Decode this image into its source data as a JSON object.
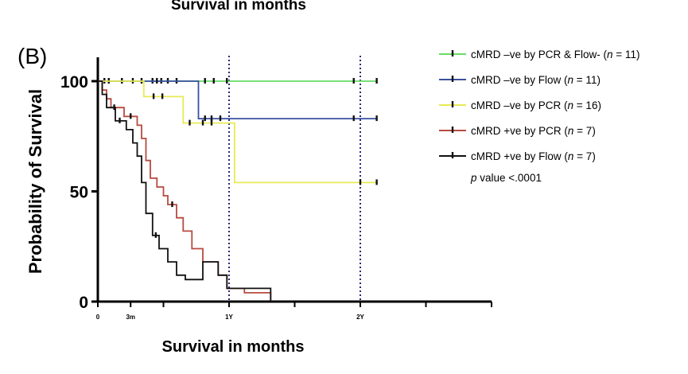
{
  "top_caption": "Survival in months",
  "chart_data": {
    "type": "line",
    "subtype": "kaplan-meier",
    "panel_label": "(B)",
    "ylabel": "Probability of Survival",
    "xlabel": "Survival in months",
    "xlim": [
      0,
      36
    ],
    "ylim": [
      0,
      100
    ],
    "y_ticks": [
      0,
      50,
      100
    ],
    "x_ticks": [
      {
        "value": 0,
        "label": "0"
      },
      {
        "value": 3,
        "label": "3m"
      },
      {
        "value": 12,
        "label": "1Y"
      },
      {
        "value": 24,
        "label": "2Y"
      }
    ],
    "reference_lines": [
      {
        "x": 12,
        "style": "dotted",
        "color": "#2a2a7a"
      },
      {
        "x": 24,
        "style": "dotted",
        "color": "#2a2a7a"
      }
    ],
    "legend_position": "right",
    "annotation": {
      "prefix": "p",
      "text": " value <.0001"
    },
    "series": [
      {
        "name_pre": "cMRD –ve by PCR & Flow- (",
        "n_label": "n",
        "name_post": " = 11)",
        "color": "#66dd66",
        "steps": [
          [
            0,
            100
          ],
          [
            25.5,
            100
          ]
        ],
        "censors": [
          [
            0.6,
            100
          ],
          [
            2.2,
            100
          ],
          [
            4.0,
            100
          ],
          [
            5.0,
            100
          ],
          [
            5.8,
            100
          ],
          [
            6.4,
            100
          ],
          [
            7.2,
            100
          ],
          [
            9.8,
            100
          ],
          [
            10.6,
            100
          ],
          [
            11.8,
            100
          ],
          [
            23.4,
            100
          ],
          [
            25.5,
            100
          ]
        ]
      },
      {
        "name_pre": "cMRD –ve by Flow (",
        "n_label": "n",
        "name_post": " = 11)",
        "color": "#3a50a0",
        "steps": [
          [
            0,
            100
          ],
          [
            9.2,
            100
          ],
          [
            9.2,
            83
          ],
          [
            25.5,
            83
          ]
        ],
        "censors": [
          [
            1.0,
            100
          ],
          [
            3.2,
            100
          ],
          [
            5.4,
            100
          ],
          [
            9.8,
            83
          ],
          [
            10.4,
            83
          ],
          [
            11.2,
            83
          ],
          [
            23.4,
            83
          ],
          [
            25.5,
            83
          ]
        ]
      },
      {
        "name_pre": "cMRD –ve by PCR (",
        "n_label": "n",
        "name_post": " = 16)",
        "color": "#e8ea55",
        "steps": [
          [
            0,
            100
          ],
          [
            4.2,
            100
          ],
          [
            4.2,
            93
          ],
          [
            7.8,
            93
          ],
          [
            7.8,
            81
          ],
          [
            12.5,
            81
          ],
          [
            12.5,
            54
          ],
          [
            25.5,
            54
          ]
        ],
        "censors": [
          [
            5.1,
            93
          ],
          [
            5.9,
            93
          ],
          [
            8.4,
            81
          ],
          [
            9.6,
            81
          ],
          [
            10.4,
            81
          ],
          [
            24.0,
            54
          ],
          [
            25.5,
            54
          ]
        ]
      },
      {
        "name_pre": "cMRD +ve by PCR (",
        "n_label": "n",
        "name_post": " = 7)",
        "color": "#b84a3f",
        "steps": [
          [
            0,
            100
          ],
          [
            0.4,
            100
          ],
          [
            0.4,
            96
          ],
          [
            0.8,
            96
          ],
          [
            0.8,
            92
          ],
          [
            1.2,
            92
          ],
          [
            1.2,
            88
          ],
          [
            2.4,
            88
          ],
          [
            2.4,
            84
          ],
          [
            3.6,
            84
          ],
          [
            3.6,
            80
          ],
          [
            4.0,
            80
          ],
          [
            4.0,
            74
          ],
          [
            4.4,
            74
          ],
          [
            4.4,
            64
          ],
          [
            4.8,
            64
          ],
          [
            4.8,
            56
          ],
          [
            5.4,
            56
          ],
          [
            5.4,
            52
          ],
          [
            6.0,
            52
          ],
          [
            6.0,
            48
          ],
          [
            6.4,
            48
          ],
          [
            6.4,
            44
          ],
          [
            7.2,
            44
          ],
          [
            7.2,
            38
          ],
          [
            7.8,
            38
          ],
          [
            7.8,
            32
          ],
          [
            8.6,
            32
          ],
          [
            8.6,
            24
          ],
          [
            9.6,
            24
          ],
          [
            9.6,
            18
          ],
          [
            11.0,
            18
          ],
          [
            11.0,
            12
          ],
          [
            11.8,
            12
          ],
          [
            11.8,
            6
          ],
          [
            13.4,
            6
          ],
          [
            13.4,
            4
          ],
          [
            15.8,
            4
          ],
          [
            15.8,
            0
          ]
        ],
        "censors": [
          [
            1.5,
            88
          ],
          [
            3.0,
            84
          ],
          [
            6.8,
            44
          ]
        ]
      },
      {
        "name_pre": "cMRD +ve by Flow (",
        "n_label": "n",
        "name_post": " = 7)",
        "color": "#111111",
        "steps": [
          [
            0,
            100
          ],
          [
            0.4,
            100
          ],
          [
            0.4,
            94
          ],
          [
            0.8,
            94
          ],
          [
            0.8,
            88
          ],
          [
            1.6,
            88
          ],
          [
            1.6,
            82
          ],
          [
            2.6,
            82
          ],
          [
            2.6,
            78
          ],
          [
            3.2,
            78
          ],
          [
            3.2,
            72
          ],
          [
            3.6,
            72
          ],
          [
            3.6,
            66
          ],
          [
            4.0,
            66
          ],
          [
            4.0,
            54
          ],
          [
            4.4,
            54
          ],
          [
            4.4,
            40
          ],
          [
            5.0,
            40
          ],
          [
            5.0,
            30
          ],
          [
            5.6,
            30
          ],
          [
            5.6,
            24
          ],
          [
            6.4,
            24
          ],
          [
            6.4,
            18
          ],
          [
            7.2,
            18
          ],
          [
            7.2,
            12
          ],
          [
            8.0,
            12
          ],
          [
            8.0,
            10
          ],
          [
            9.6,
            10
          ],
          [
            9.6,
            18
          ],
          [
            11.0,
            18
          ],
          [
            11.0,
            12
          ],
          [
            11.8,
            12
          ],
          [
            11.8,
            6
          ],
          [
            15.8,
            6
          ],
          [
            15.8,
            0
          ]
        ],
        "censors": [
          [
            2.0,
            82
          ],
          [
            5.3,
            30
          ]
        ]
      }
    ]
  }
}
